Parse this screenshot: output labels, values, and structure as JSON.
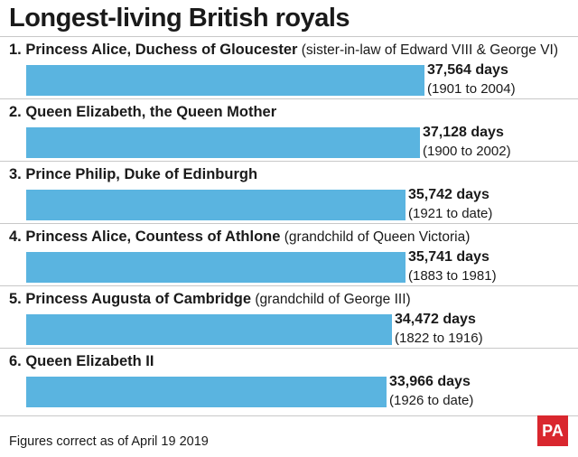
{
  "title": "Longest-living British royals",
  "footnote": "Figures correct as of April 19 2019",
  "logo_text": "PA",
  "colors": {
    "bar": "#5ab4e0",
    "logo": "#d9272e",
    "text": "#1a1a1a"
  },
  "chart_data": {
    "type": "bar",
    "orientation": "horizontal",
    "title": "Longest-living British royals",
    "unit": "days",
    "categories": [
      "1. Princess Alice, Duchess of Gloucester",
      "2. Queen Elizabeth, the Queen Mother",
      "3. Prince Philip, Duke of Edinburgh",
      "4. Princess Alice, Countess of Athlone",
      "5. Princess Augusta of Cambridge",
      "6. Queen Elizabeth II"
    ],
    "notes": [
      "(sister-in-law of Edward VIII & George VI)",
      "",
      "",
      "(grandchild of Queen Victoria)",
      "(grandchild of George III)",
      ""
    ],
    "values": [
      37564,
      37128,
      35742,
      35741,
      34472,
      33966
    ],
    "value_labels": [
      "37,564 days",
      "37,128 days",
      "35,742 days",
      "35,741 days",
      "34,472 days",
      "33,966 days"
    ],
    "year_labels": [
      "(1901 to 2004)",
      "(1900 to 2002)",
      "(1921 to date)",
      "(1883 to 1981)",
      "(1822 to 1916)",
      "(1926 to date)"
    ]
  }
}
